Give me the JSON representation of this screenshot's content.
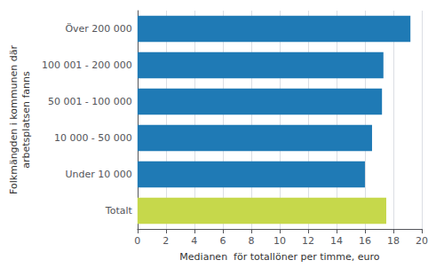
{
  "chart_data": {
    "type": "bar",
    "orientation": "horizontal",
    "categories": [
      "Totalt",
      "Under 10 000",
      "10 000 - 50 000",
      "50 001 - 100 000",
      "100 001 - 200 000",
      "Över 200 000"
    ],
    "values": [
      17.5,
      16.0,
      16.5,
      17.2,
      17.3,
      19.2
    ],
    "colors": [
      "#c6d84b",
      "#1f7ab5",
      "#1f7ab5",
      "#1f7ab5",
      "#1f7ab5",
      "#1f7ab5"
    ],
    "xlabel": "Medianen  för totallöner per timme, euro",
    "ylabel": "Folkmängden i kommunen där\narbetsplatsen fanns",
    "xlim": [
      0,
      20
    ],
    "xticks": [
      0,
      2,
      4,
      6,
      8,
      10,
      12,
      14,
      16,
      18,
      20
    ],
    "grid": true
  }
}
